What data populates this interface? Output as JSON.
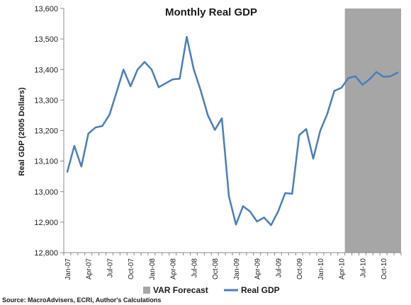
{
  "chart_data": {
    "type": "line",
    "title": "Monthly Real GDP",
    "xlabel": "",
    "ylabel": "Real GDP (2005 Dollars)",
    "ylim": [
      12800,
      13600
    ],
    "yticks": [
      12800,
      12900,
      13000,
      13100,
      13200,
      13300,
      13400,
      13500,
      13600
    ],
    "ytick_labels": [
      "12,800",
      "12,900",
      "13,000",
      "13,100",
      "13,200",
      "13,300",
      "13,400",
      "13,500",
      "13,600"
    ],
    "grid": false,
    "x_tick_labels": [
      "Jan-07",
      "Apr-07",
      "Jul-07",
      "Oct-07",
      "Jan-08",
      "Apr-08",
      "Jul-08",
      "Oct-08",
      "Jan-09",
      "Apr-09",
      "Jul-09",
      "Oct-09",
      "Jan-10",
      "Apr-10",
      "Jul-10",
      "Oct-10"
    ],
    "x": [
      "Jan-07",
      "Feb-07",
      "Mar-07",
      "Apr-07",
      "May-07",
      "Jun-07",
      "Jul-07",
      "Aug-07",
      "Sep-07",
      "Oct-07",
      "Nov-07",
      "Dec-07",
      "Jan-08",
      "Feb-08",
      "Mar-08",
      "Apr-08",
      "May-08",
      "Jun-08",
      "Jul-08",
      "Aug-08",
      "Sep-08",
      "Oct-08",
      "Nov-08",
      "Dec-08",
      "Jan-09",
      "Feb-09",
      "Mar-09",
      "Apr-09",
      "May-09",
      "Jun-09",
      "Jul-09",
      "Aug-09",
      "Sep-09",
      "Oct-09",
      "Nov-09",
      "Dec-09",
      "Jan-10",
      "Feb-10",
      "Mar-10",
      "Apr-10",
      "May-10",
      "Jun-10",
      "Jul-10",
      "Aug-10",
      "Sep-10",
      "Oct-10",
      "Nov-10",
      "Dec-10"
    ],
    "series": [
      {
        "name": "Real GDP",
        "color": "#4a7ebb",
        "values": [
          13065,
          13150,
          13082,
          13190,
          13210,
          13215,
          13252,
          13325,
          13400,
          13345,
          13400,
          13425,
          13400,
          13342,
          13355,
          13368,
          13370,
          13507,
          13400,
          13330,
          13250,
          13202,
          13240,
          12985,
          12892,
          12952,
          12935,
          12902,
          12915,
          12890,
          12935,
          12995,
          12993,
          13185,
          13205,
          13108,
          13200,
          13255,
          13330,
          13340,
          13372,
          13378,
          13350,
          13368,
          13392,
          13376,
          13378,
          13390
        ]
      }
    ],
    "shaded_region": {
      "name": "VAR Forecast",
      "color": "#a6a6a6",
      "x_start": "May-10",
      "x_end": "Dec-10"
    },
    "legend_placement": "bottom",
    "source": "Source: MacroAdvisers, ECRI, Author's Calculations"
  }
}
